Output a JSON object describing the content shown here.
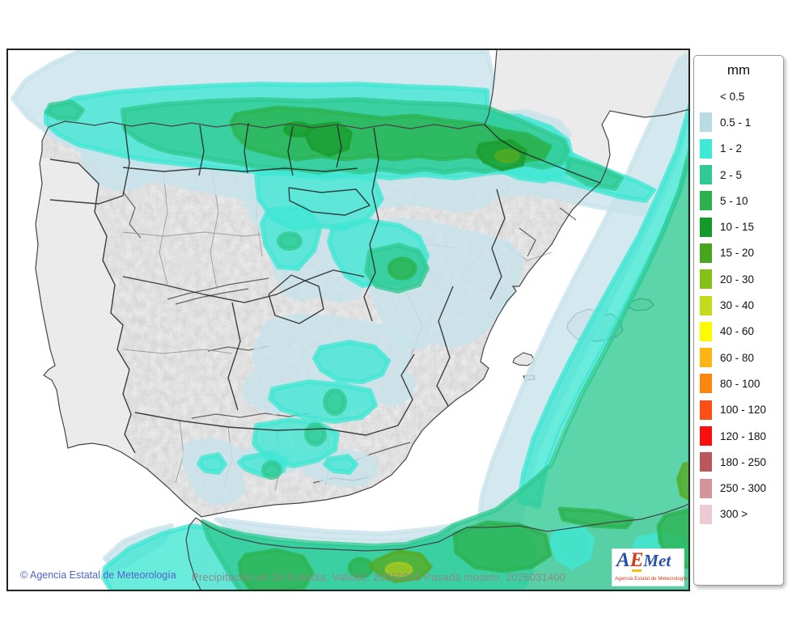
{
  "legend": {
    "title": "mm",
    "items": [
      {
        "label": "< 0.5",
        "color": null
      },
      {
        "label": "0.5 - 1",
        "color": "#b7dae3"
      },
      {
        "label": "1 - 2",
        "color": "#3de9d4"
      },
      {
        "label": "2 - 5",
        "color": "#2fc993"
      },
      {
        "label": "5 - 10",
        "color": "#2bb150"
      },
      {
        "label": "10 - 15",
        "color": "#119a27"
      },
      {
        "label": "15 - 20",
        "color": "#47a41d"
      },
      {
        "label": "20 - 30",
        "color": "#83c116"
      },
      {
        "label": "30 - 40",
        "color": "#c4da1b"
      },
      {
        "label": "40 - 60",
        "color": "#fdfb02"
      },
      {
        "label": "60 - 80",
        "color": "#fdb515"
      },
      {
        "label": "80 - 100",
        "color": "#fc8510"
      },
      {
        "label": "100 - 120",
        "color": "#fb4f15"
      },
      {
        "label": "120 - 180",
        "color": "#fa0f0e"
      },
      {
        "label": "180 - 250",
        "color": "#bb575b"
      },
      {
        "label": "250 - 300",
        "color": "#d2959c"
      },
      {
        "label": "300 >",
        "color": "#edcbd2"
      }
    ]
  },
  "footer": {
    "copyright": "© Agencia Estatal de Meteorología",
    "caption": "Precipitación en 24 h media. Validez: 20260315 Pasada modelo: 2026031400"
  },
  "logo": {
    "a": "A",
    "e": "E",
    "met": "Met",
    "subtitle": "Agencia Estatal de Meteorología"
  },
  "map_colors": {
    "sea": "#ffffff",
    "land": "#ececec",
    "pale": "#c8e3ea",
    "cyan": "#40e7d3",
    "green_2_5": "#2fc992",
    "green_5_10": "#2cb251",
    "green_10_15": "#1a9c2e",
    "green_15_20": "#55aa21",
    "lime": "#a8cb22"
  }
}
